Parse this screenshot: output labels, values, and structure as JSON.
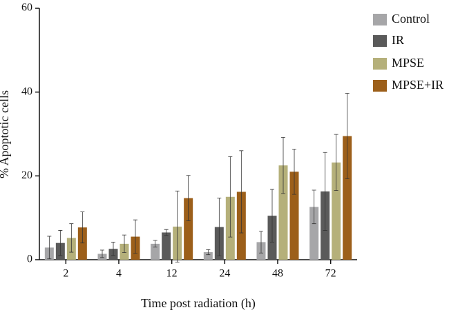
{
  "chart_data": {
    "type": "bar",
    "ylabel": "% Apoptotic cells",
    "xlabel": "Time post radiation (h)",
    "categories": [
      "2",
      "4",
      "12",
      "24",
      "48",
      "72"
    ],
    "series": [
      {
        "name": "Control",
        "color": "#a6a6a8",
        "values": [
          2.9,
          1.4,
          3.8,
          1.8,
          4.2,
          12.6
        ],
        "errors": [
          2.7,
          0.9,
          0.8,
          0.6,
          2.6,
          4.0
        ]
      },
      {
        "name": "IR",
        "color": "#5a5a5a",
        "values": [
          4.0,
          2.6,
          6.5,
          7.8,
          10.5,
          16.3
        ],
        "errors": [
          3.0,
          1.6,
          0.7,
          6.9,
          6.3,
          9.3
        ]
      },
      {
        "name": "MPSE",
        "color": "#b5b07a",
        "values": [
          5.2,
          3.8,
          7.9,
          15.0,
          22.5,
          23.2
        ],
        "errors": [
          3.4,
          2.1,
          8.5,
          9.6,
          6.7,
          6.7
        ]
      },
      {
        "name": "MPSE+IR",
        "color": "#9c5f1a",
        "values": [
          7.7,
          5.5,
          14.7,
          16.2,
          21.0,
          29.5
        ],
        "errors": [
          3.7,
          4.0,
          5.4,
          9.8,
          5.4,
          10.2
        ]
      }
    ],
    "ylim": [
      0,
      60
    ],
    "yticks": [
      0,
      20,
      40,
      60
    ],
    "legend": "right"
  }
}
